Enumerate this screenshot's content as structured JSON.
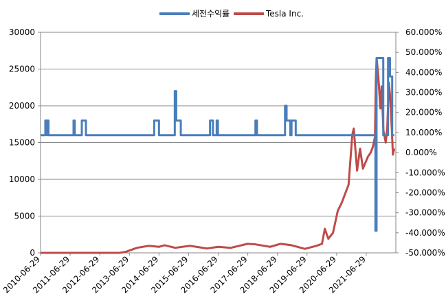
{
  "chart_data": {
    "type": "line",
    "legend_position": "top",
    "grid": true,
    "series": [
      {
        "name": "세전수익률",
        "axis": "left",
        "color": "#4a7ebb",
        "points": [
          [
            "2010-06-29",
            16000
          ],
          [
            "2010-08-27",
            16000
          ],
          [
            "2010-08-27",
            18000
          ],
          [
            "2010-09-15",
            18000
          ],
          [
            "2010-09-15",
            16000
          ],
          [
            "2010-09-20",
            16000
          ],
          [
            "2010-09-20",
            18000
          ],
          [
            "2010-10-05",
            18000
          ],
          [
            "2010-10-05",
            16000
          ],
          [
            "2011-08-10",
            16000
          ],
          [
            "2011-08-10",
            18000
          ],
          [
            "2011-08-25",
            18000
          ],
          [
            "2011-08-25",
            16000
          ],
          [
            "2011-11-20",
            16000
          ],
          [
            "2011-11-20",
            18000
          ],
          [
            "2012-01-10",
            18000
          ],
          [
            "2012-01-10",
            16000
          ],
          [
            "2014-05-01",
            16000
          ],
          [
            "2014-05-01",
            18000
          ],
          [
            "2014-06-29",
            18000
          ],
          [
            "2014-06-29",
            16000
          ],
          [
            "2015-01-10",
            16000
          ],
          [
            "2015-01-10",
            22000
          ],
          [
            "2015-01-28",
            22000
          ],
          [
            "2015-01-28",
            18000
          ],
          [
            "2015-03-25",
            18000
          ],
          [
            "2015-03-25",
            16000
          ],
          [
            "2016-03-20",
            16000
          ],
          [
            "2016-03-20",
            18000
          ],
          [
            "2016-04-25",
            18000
          ],
          [
            "2016-04-25",
            16000
          ],
          [
            "2016-06-10",
            16000
          ],
          [
            "2016-06-10",
            18000
          ],
          [
            "2016-06-25",
            18000
          ],
          [
            "2016-06-25",
            16000
          ],
          [
            "2017-10-01",
            16000
          ],
          [
            "2017-10-01",
            18000
          ],
          [
            "2017-10-20",
            18000
          ],
          [
            "2017-10-20",
            16000
          ],
          [
            "2018-10-01",
            16000
          ],
          [
            "2018-10-01",
            20000
          ],
          [
            "2018-10-20",
            20000
          ],
          [
            "2018-10-20",
            18000
          ],
          [
            "2018-12-05",
            18000
          ],
          [
            "2018-12-05",
            16000
          ],
          [
            "2018-12-20",
            16000
          ],
          [
            "2018-12-20",
            18000
          ],
          [
            "2019-02-10",
            18000
          ],
          [
            "2019-02-10",
            16000
          ],
          [
            "2021-10-20",
            16000
          ],
          [
            "2021-10-20",
            3000
          ],
          [
            "2021-11-03",
            3000
          ],
          [
            "2021-11-03",
            26500
          ],
          [
            "2022-01-25",
            26500
          ],
          [
            "2022-01-25",
            16000
          ],
          [
            "2022-03-25",
            16000
          ],
          [
            "2022-03-25",
            26500
          ],
          [
            "2022-04-18",
            26500
          ],
          [
            "2022-04-18",
            24000
          ],
          [
            "2022-05-15",
            24000
          ],
          [
            "2022-05-15",
            16000
          ],
          [
            "2022-06-10",
            16000
          ]
        ]
      },
      {
        "name": "Tesla Inc.",
        "axis": "right",
        "color": "#be4b48",
        "points": [
          [
            "2010-06-29",
            -0.5
          ],
          [
            "2013-03-01",
            -0.5
          ],
          [
            "2013-05-15",
            -0.495
          ],
          [
            "2013-09-30",
            -0.475
          ],
          [
            "2014-02-25",
            -0.465
          ],
          [
            "2014-06-29",
            -0.47
          ],
          [
            "2014-09-05",
            -0.462
          ],
          [
            "2015-01-15",
            -0.475
          ],
          [
            "2015-07-15",
            -0.465
          ],
          [
            "2016-02-10",
            -0.478
          ],
          [
            "2016-06-29",
            -0.47
          ],
          [
            "2016-12-01",
            -0.475
          ],
          [
            "2017-06-25",
            -0.455
          ],
          [
            "2017-09-20",
            -0.457
          ],
          [
            "2018-04-01",
            -0.47
          ],
          [
            "2018-08-07",
            -0.455
          ],
          [
            "2018-12-20",
            -0.462
          ],
          [
            "2019-06-03",
            -0.48
          ],
          [
            "2019-10-23",
            -0.465
          ],
          [
            "2019-12-31",
            -0.455
          ],
          [
            "2020-02-04",
            -0.38
          ],
          [
            "2020-03-18",
            -0.43
          ],
          [
            "2020-05-15",
            -0.4
          ],
          [
            "2020-07-13",
            -0.29
          ],
          [
            "2020-08-31",
            -0.25
          ],
          [
            "2020-11-23",
            -0.16
          ],
          [
            "2021-01-08",
            0.09
          ],
          [
            "2021-01-26",
            0.12
          ],
          [
            "2021-03-08",
            -0.09
          ],
          [
            "2021-04-14",
            0.02
          ],
          [
            "2021-05-19",
            -0.08
          ],
          [
            "2021-07-20",
            -0.02
          ],
          [
            "2021-08-23",
            0.0
          ],
          [
            "2021-09-20",
            0.03
          ],
          [
            "2021-10-15",
            0.08
          ],
          [
            "2021-10-25",
            0.36
          ],
          [
            "2021-11-04",
            0.47
          ],
          [
            "2021-11-25",
            0.38
          ],
          [
            "2021-12-20",
            0.22
          ],
          [
            "2022-01-04",
            0.33
          ],
          [
            "2022-01-27",
            0.11
          ],
          [
            "2022-02-24",
            0.05
          ],
          [
            "2022-03-15",
            0.12
          ],
          [
            "2022-04-04",
            0.35
          ],
          [
            "2022-04-20",
            0.28
          ],
          [
            "2022-05-10",
            0.12
          ],
          [
            "2022-05-24",
            -0.01
          ],
          [
            "2022-06-10",
            0.02
          ]
        ]
      }
    ],
    "left_axis": {
      "min": 0,
      "max": 30000,
      "ticks": [
        "0",
        "5000",
        "10000",
        "15000",
        "20000",
        "25000",
        "30000"
      ]
    },
    "right_axis": {
      "min": -0.5,
      "max": 0.6,
      "ticks": [
        "-50.000%",
        "-40.000%",
        "-30.000%",
        "-20.000%",
        "-10.000%",
        "0.000%",
        "10.000%",
        "20.000%",
        "30.000%",
        "40.000%",
        "50.000%",
        "60.000%"
      ]
    },
    "x_axis": {
      "min": "2010-06-29",
      "max": "2022-06-29",
      "ticks": [
        "2010-06-29",
        "2011-06-29",
        "2012-06-29",
        "2013-06-29",
        "2014-06-29",
        "2015-06-29",
        "2016-06-29",
        "2017-06-29",
        "2018-06-29",
        "2019-06-29",
        "2020-06-29",
        "2021-06-29"
      ]
    }
  }
}
